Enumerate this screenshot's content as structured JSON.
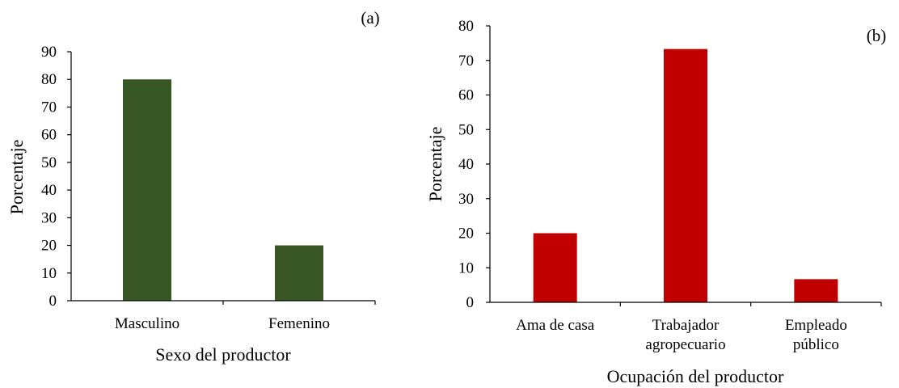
{
  "chart_data": [
    {
      "type": "bar",
      "panel_label": "(a)",
      "title": "",
      "xlabel": "Sexo del productor",
      "ylabel": "Porcentaje",
      "categories": [
        [
          "Masculino"
        ],
        [
          "Femenino"
        ]
      ],
      "values": [
        80,
        20
      ],
      "ylim": [
        0,
        90
      ],
      "yticks": [
        0,
        10,
        20,
        30,
        40,
        50,
        60,
        70,
        80,
        90
      ],
      "grid": false,
      "color": "#375623"
    },
    {
      "type": "bar",
      "panel_label": "(b)",
      "title": "",
      "xlabel": "Ocupación del productor",
      "ylabel": "Porcentaje",
      "categories": [
        [
          "Ama de casa"
        ],
        [
          "Trabajador",
          "agropecuario"
        ],
        [
          "Empleado",
          "público"
        ]
      ],
      "values": [
        20,
        73.3,
        6.7
      ],
      "ylim": [
        0,
        80
      ],
      "yticks": [
        0,
        10,
        20,
        30,
        40,
        50,
        60,
        70,
        80
      ],
      "grid": false,
      "color": "#c00000"
    }
  ]
}
